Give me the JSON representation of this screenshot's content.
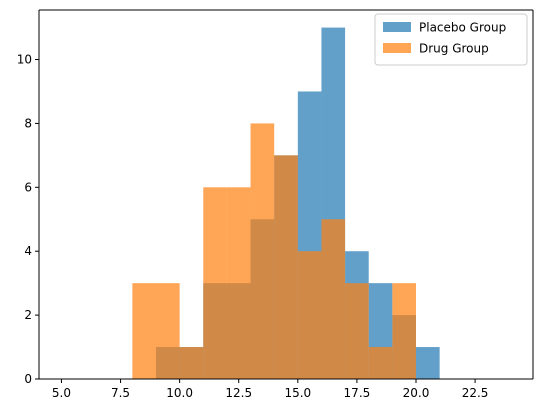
{
  "chart_data": {
    "type": "histogram",
    "title": "",
    "xlabel": "",
    "ylabel": "",
    "xlim": [
      4.05,
      24.95
    ],
    "ylim": [
      0,
      11.55
    ],
    "x_ticks": [
      5.0,
      7.5,
      10.0,
      12.5,
      15.0,
      17.5,
      20.0,
      22.5
    ],
    "x_tick_labels": [
      "5.0",
      "7.5",
      "10.0",
      "12.5",
      "15.0",
      "17.5",
      "20.0",
      "22.5"
    ],
    "y_ticks": [
      0,
      2,
      4,
      6,
      8,
      10
    ],
    "y_tick_labels": [
      "0",
      "2",
      "4",
      "6",
      "8",
      "10"
    ],
    "bin_edges": [
      5,
      6,
      7,
      8,
      9,
      10,
      11,
      12,
      13,
      14,
      15,
      16,
      17,
      18,
      19,
      20,
      21,
      22,
      23,
      24
    ],
    "series": [
      {
        "name": "Placebo Group",
        "color": "#1f77b4",
        "alpha": 0.7,
        "values": [
          0,
          0,
          0,
          0,
          1,
          1,
          3,
          3,
          5,
          7,
          9,
          11,
          4,
          3,
          2,
          1,
          0,
          0,
          0
        ]
      },
      {
        "name": "Drug Group",
        "color": "#ff7f0e",
        "alpha": 0.7,
        "values": [
          0,
          0,
          0,
          3,
          3,
          1,
          6,
          6,
          8,
          7,
          4,
          5,
          3,
          1,
          3,
          0,
          0,
          0,
          0
        ]
      }
    ],
    "legend_position": "top-right",
    "grid": false
  }
}
